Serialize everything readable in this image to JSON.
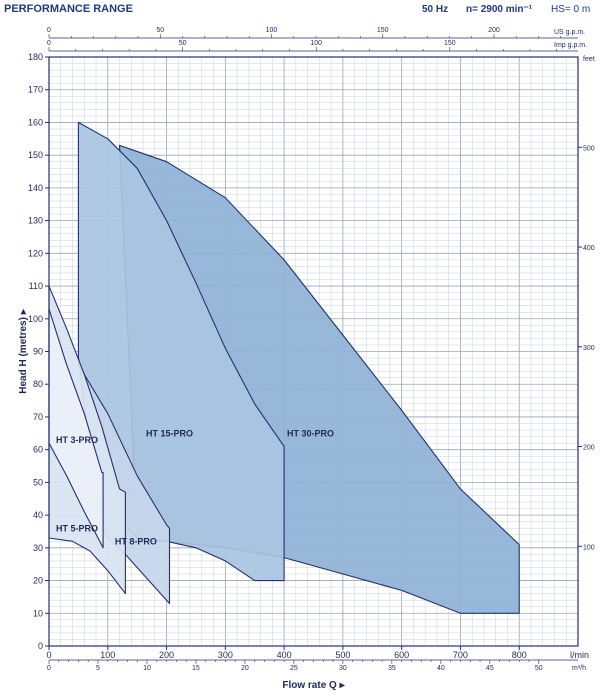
{
  "header": {
    "title": "PERFORMANCE RANGE",
    "freq": "50 Hz",
    "speed": "n= 2900 min⁻¹",
    "hs": "HS= 0 m"
  },
  "chart_data": {
    "type": "area",
    "title": "PERFORMANCE RANGE",
    "ylabel": "Head H (metres)",
    "xlabel": "Flow rate Q",
    "x_unit_primary": "l/min",
    "x_unit_m3h": "m³/h",
    "x_unit_us": "US g.p.m.",
    "x_unit_imp": "Imp g.p.m.",
    "y_unit_right": "feet",
    "xlim": [
      0,
      900
    ],
    "ylim": [
      0,
      180
    ],
    "grid": true,
    "x_ticks_lmin": [
      0,
      100,
      200,
      300,
      400,
      500,
      600,
      700,
      800
    ],
    "x_ticks_lmin_labels": [
      "0",
      "100",
      "200",
      "300",
      "400",
      "500",
      "600",
      "700",
      "800"
    ],
    "x_ticks_m3h": [
      0,
      5,
      10,
      15,
      20,
      25,
      30,
      35,
      40,
      45,
      50
    ],
    "x_ticks_m3h_labels": [
      "0",
      "5",
      "10",
      "15",
      "20",
      "25",
      "30",
      "35",
      "40",
      "45",
      "50"
    ],
    "x_ticks_us": [
      0,
      50,
      100,
      150,
      200
    ],
    "x_ticks_us_labels": [
      "0",
      "50",
      "100",
      "150",
      "200"
    ],
    "x_ticks_imp": [
      0,
      50,
      100,
      150
    ],
    "x_ticks_imp_labels": [
      "0",
      "50",
      "100",
      "150"
    ],
    "y_ticks": [
      0,
      10,
      20,
      30,
      40,
      50,
      60,
      70,
      80,
      90,
      100,
      110,
      120,
      130,
      140,
      150,
      160,
      170,
      180
    ],
    "y_ticks_labels": [
      "0",
      "10",
      "20",
      "30",
      "40",
      "50",
      "60",
      "70",
      "80",
      "90",
      "100",
      "110",
      "120",
      "130",
      "140",
      "150",
      "160",
      "170",
      "180"
    ],
    "y_ticks_feet": [
      100,
      200,
      300,
      400,
      500
    ],
    "y_ticks_feet_labels": [
      "100",
      "200",
      "300",
      "400",
      "500"
    ],
    "series": [
      {
        "name": "HT 30-PRO",
        "color": "#8fb2d6",
        "label_at": [
          405,
          64
        ],
        "upper": [
          [
            120,
            153
          ],
          [
            200,
            148
          ],
          [
            300,
            137
          ],
          [
            400,
            118
          ],
          [
            500,
            95
          ],
          [
            600,
            72
          ],
          [
            700,
            48
          ],
          [
            800,
            31
          ]
        ],
        "lower": [
          [
            800,
            10
          ],
          [
            700,
            10
          ],
          [
            600,
            17
          ],
          [
            500,
            22
          ],
          [
            400,
            27
          ],
          [
            300,
            30
          ],
          [
            200,
            32
          ],
          [
            150,
            32
          ]
        ]
      },
      {
        "name": "HT 15-PRO",
        "color": "#a9c4e1",
        "label_at": [
          165,
          64
        ],
        "upper": [
          [
            50,
            160
          ],
          [
            100,
            155
          ],
          [
            150,
            146
          ],
          [
            200,
            130
          ],
          [
            250,
            111
          ],
          [
            300,
            91
          ],
          [
            350,
            74
          ],
          [
            400,
            61
          ]
        ],
        "lower": [
          [
            400,
            20
          ],
          [
            350,
            20
          ],
          [
            300,
            26
          ],
          [
            250,
            30
          ],
          [
            200,
            32
          ],
          [
            150,
            33
          ],
          [
            100,
            42
          ],
          [
            50,
            88
          ]
        ]
      },
      {
        "name": "HT 8-PRO",
        "color": "#c5d6ec",
        "label_at": [
          112,
          31
        ],
        "upper": [
          [
            50,
            86
          ],
          [
            100,
            71
          ],
          [
            150,
            52
          ],
          [
            200,
            37
          ],
          [
            205,
            36
          ]
        ],
        "lower": [
          [
            205,
            13
          ],
          [
            170,
            20
          ],
          [
            130,
            28
          ],
          [
            100,
            33
          ],
          [
            85,
            38
          ],
          [
            50,
            88
          ]
        ]
      },
      {
        "name": "HT 5-PRO",
        "color": "#d9e4f2",
        "label_at": [
          12,
          35
        ],
        "upper": [
          [
            0,
            110
          ],
          [
            30,
            97
          ],
          [
            60,
            83
          ],
          [
            90,
            67
          ],
          [
            120,
            48
          ],
          [
            130,
            47
          ]
        ],
        "lower": [
          [
            130,
            16
          ],
          [
            100,
            23
          ],
          [
            70,
            29
          ],
          [
            40,
            32
          ],
          [
            0,
            33
          ]
        ]
      },
      {
        "name": "HT 3-PRO",
        "color": "#eaf0f8",
        "label_at": [
          12,
          62
        ],
        "upper": [
          [
            0,
            103
          ],
          [
            30,
            86
          ],
          [
            60,
            71
          ],
          [
            90,
            53
          ],
          [
            92,
            53
          ]
        ],
        "lower": [
          [
            92,
            30
          ],
          [
            60,
            41
          ],
          [
            30,
            52
          ],
          [
            0,
            62
          ]
        ]
      }
    ]
  }
}
